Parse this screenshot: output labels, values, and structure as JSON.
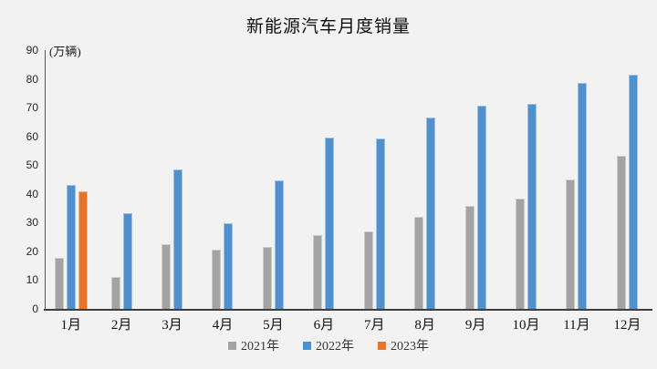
{
  "chart_data": {
    "type": "bar",
    "title": "新能源汽车月度销量",
    "y_unit_label": "(万辆)",
    "categories": [
      "1月",
      "2月",
      "3月",
      "4月",
      "5月",
      "6月",
      "7月",
      "8月",
      "9月",
      "10月",
      "11月",
      "12月"
    ],
    "series": [
      {
        "name": "2021年",
        "color": "#a3a3a3",
        "values": [
          17.9,
          11.0,
          22.6,
          20.6,
          21.7,
          25.6,
          27.1,
          32.1,
          35.7,
          38.3,
          45.0,
          53.1
        ]
      },
      {
        "name": "2022年",
        "color": "#4f90cd",
        "values": [
          43.1,
          33.4,
          48.4,
          29.9,
          44.7,
          59.6,
          59.3,
          66.6,
          70.8,
          71.4,
          78.6,
          81.4
        ]
      },
      {
        "name": "2023年",
        "color": "#e8732a",
        "values": [
          40.8,
          null,
          null,
          null,
          null,
          null,
          null,
          null,
          null,
          null,
          null,
          null
        ]
      }
    ],
    "ylim": [
      0,
      90
    ],
    "yticks": [
      0,
      10,
      20,
      30,
      40,
      50,
      60,
      70,
      80,
      90
    ],
    "grid": false,
    "legend_position": "bottom"
  },
  "colors": {
    "background": "#f2f2f2",
    "axis": "#3f3f3f",
    "text": "#1a1a1a"
  }
}
